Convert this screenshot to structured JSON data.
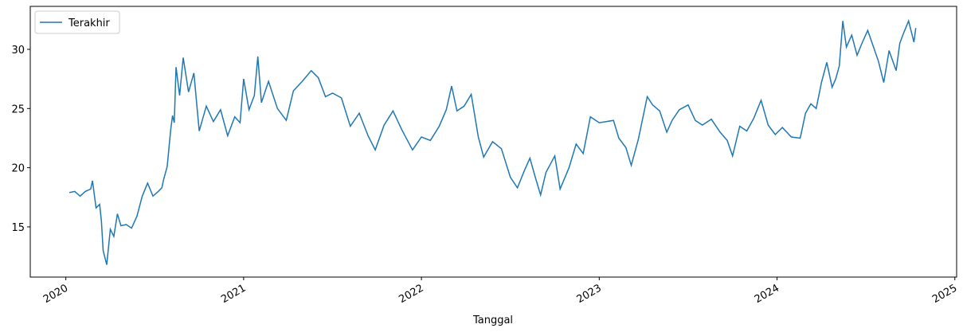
{
  "chart_data": {
    "type": "line",
    "xlabel": "Tanggal",
    "x": [
      2020.02,
      2020.05,
      2020.08,
      2020.11,
      2020.14,
      2020.15,
      2020.17,
      2020.19,
      2020.2,
      2020.21,
      2020.23,
      2020.25,
      2020.27,
      2020.29,
      2020.31,
      2020.34,
      2020.37,
      2020.4,
      2020.43,
      2020.46,
      2020.49,
      2020.52,
      2020.54,
      2020.55,
      2020.57,
      2020.59,
      2020.6,
      2020.61,
      2020.62,
      2020.64,
      2020.66,
      2020.69,
      2020.72,
      2020.75,
      2020.79,
      2020.83,
      2020.87,
      2020.91,
      2020.95,
      2020.98,
      2021.0,
      2021.03,
      2021.06,
      2021.08,
      2021.1,
      2021.14,
      2021.19,
      2021.24,
      2021.28,
      2021.33,
      2021.38,
      2021.42,
      2021.46,
      2021.5,
      2021.55,
      2021.6,
      2021.65,
      2021.7,
      2021.74,
      2021.79,
      2021.84,
      2021.89,
      2021.95,
      2022.0,
      2022.05,
      2022.1,
      2022.14,
      2022.17,
      2022.2,
      2022.24,
      2022.28,
      2022.32,
      2022.35,
      2022.4,
      2022.45,
      2022.5,
      2022.54,
      2022.58,
      2022.61,
      2022.64,
      2022.67,
      2022.7,
      2022.75,
      2022.78,
      2022.83,
      2022.87,
      2022.91,
      2022.95,
      2023.0,
      2023.04,
      2023.08,
      2023.11,
      2023.15,
      2023.18,
      2023.22,
      2023.27,
      2023.3,
      2023.34,
      2023.38,
      2023.41,
      2023.45,
      2023.5,
      2023.54,
      2023.58,
      2023.63,
      2023.68,
      2023.72,
      2023.75,
      2023.79,
      2023.83,
      2023.87,
      2023.91,
      2023.95,
      2023.99,
      2024.03,
      2024.08,
      2024.13,
      2024.16,
      2024.19,
      2024.22,
      2024.25,
      2024.28,
      2024.31,
      2024.33,
      2024.35,
      2024.37,
      2024.39,
      2024.42,
      2024.45,
      2024.48,
      2024.51,
      2024.54,
      2024.57,
      2024.6,
      2024.63,
      2024.67,
      2024.69,
      2024.71,
      2024.74,
      2024.77,
      2024.78
    ],
    "series": [
      {
        "name": "Terakhir",
        "color": "#1f77b4",
        "values": [
          17.9,
          18.0,
          17.6,
          18.0,
          18.2,
          18.9,
          16.6,
          16.9,
          15.5,
          13.0,
          11.8,
          14.8,
          14.2,
          16.1,
          15.1,
          15.2,
          14.9,
          15.9,
          17.6,
          18.7,
          17.6,
          18.0,
          18.3,
          19.0,
          20.1,
          23.2,
          24.4,
          23.8,
          28.5,
          26.1,
          29.3,
          26.4,
          28.0,
          23.1,
          25.2,
          23.9,
          24.9,
          22.7,
          24.3,
          23.8,
          27.5,
          24.9,
          26.1,
          29.4,
          25.5,
          27.3,
          25.0,
          24.0,
          26.5,
          27.3,
          28.2,
          27.6,
          26.0,
          26.3,
          25.9,
          23.5,
          24.6,
          22.7,
          21.5,
          23.6,
          24.8,
          23.2,
          21.5,
          22.6,
          22.3,
          23.5,
          24.9,
          26.9,
          24.8,
          25.2,
          26.2,
          22.6,
          20.9,
          22.2,
          21.6,
          19.2,
          18.3,
          19.8,
          20.8,
          19.2,
          17.7,
          19.6,
          21.0,
          18.2,
          20.0,
          22.0,
          21.2,
          24.3,
          23.8,
          23.9,
          24.0,
          22.5,
          21.7,
          20.2,
          22.4,
          26.0,
          25.3,
          24.8,
          23.0,
          24.0,
          24.9,
          25.3,
          24.0,
          23.6,
          24.1,
          23.0,
          22.3,
          21.0,
          23.5,
          23.1,
          24.2,
          25.7,
          23.6,
          22.8,
          23.4,
          22.6,
          22.5,
          24.6,
          25.4,
          25.0,
          27.2,
          28.9,
          26.8,
          27.5,
          28.6,
          32.4,
          30.2,
          31.2,
          29.5,
          30.6,
          31.6,
          30.3,
          29.0,
          27.2,
          29.9,
          28.2,
          30.5,
          31.3,
          32.4,
          30.6,
          31.8
        ]
      }
    ],
    "xlim": [
      2019.8,
      2025.01
    ],
    "xticks": [
      2020,
      2021,
      2022,
      2023,
      2024,
      2025
    ],
    "ylim": [
      10.76,
      33.63
    ],
    "yticks": [
      15,
      20,
      25,
      30
    ],
    "legend": "upper left"
  }
}
